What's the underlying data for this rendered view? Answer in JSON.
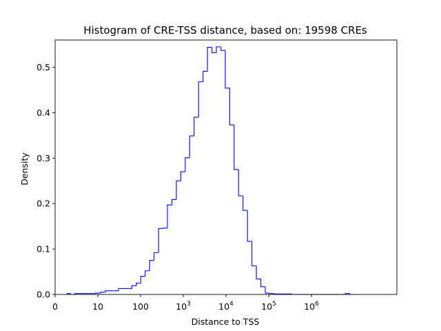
{
  "chart_data": {
    "type": "histogram",
    "title": "Histogram of CRE-TSS distance, based on: 19598 CREs",
    "xlabel": "Distance to TSS",
    "ylabel": "Density",
    "x_scale": "symlog",
    "x_linthresh": 10,
    "xlim": [
      0,
      100000000
    ],
    "ylim": [
      0,
      0.56
    ],
    "x_ticks": [
      {
        "value": 0,
        "base": "0",
        "exp": ""
      },
      {
        "value": 10,
        "base": "10",
        "exp": ""
      },
      {
        "value": 100,
        "base": "100",
        "exp": ""
      },
      {
        "value": 1000,
        "base": "10",
        "exp": "3"
      },
      {
        "value": 10000,
        "base": "10",
        "exp": "4"
      },
      {
        "value": 100000,
        "base": "10",
        "exp": "5"
      },
      {
        "value": 1000000,
        "base": "10",
        "exp": "6"
      }
    ],
    "y_ticks": [
      {
        "value": 0.0,
        "label": "0.0"
      },
      {
        "value": 0.1,
        "label": "0.1"
      },
      {
        "value": 0.2,
        "label": "0.2"
      },
      {
        "value": 0.3,
        "label": "0.3"
      },
      {
        "value": 0.4,
        "label": "0.4"
      },
      {
        "value": 0.5,
        "label": "0.5"
      }
    ],
    "series": [
      {
        "color": "#0000ff",
        "bin_edges": [
          2.8,
          3.6,
          4.6,
          5.8,
          7.4,
          9.4,
          11.7,
          14.9,
          19,
          24,
          30.5,
          38.8,
          49.3,
          62.6,
          79.6,
          101,
          128,
          163,
          207,
          264,
          335,
          426,
          541,
          688,
          874,
          1110,
          1410,
          1790,
          2280,
          2900,
          3680,
          4680,
          5950,
          7560,
          9610,
          12200,
          15500,
          19700,
          25000,
          31800,
          40400,
          51400,
          65300,
          83000,
          105000,
          134000,
          170000,
          216000,
          275000,
          349000,
          444000,
          564000,
          717000,
          911000,
          1160000,
          1470000,
          1870000,
          2380000,
          3020000,
          3840000,
          4880000,
          6200000,
          7880000,
          10000000
        ],
        "densities": [
          0.002,
          0.0,
          0.002,
          0.002,
          0.002,
          0.003,
          0.005,
          0.008,
          0.008,
          0.008,
          0.013,
          0.013,
          0.013,
          0.019,
          0.025,
          0.04,
          0.052,
          0.075,
          0.092,
          0.145,
          0.146,
          0.197,
          0.209,
          0.25,
          0.27,
          0.301,
          0.349,
          0.39,
          0.468,
          0.491,
          0.544,
          0.532,
          0.545,
          0.537,
          0.454,
          0.373,
          0.275,
          0.217,
          0.185,
          0.117,
          0.063,
          0.034,
          0.017,
          0.003,
          0.002,
          0.001,
          0.001,
          0.001,
          0.001,
          0.0,
          0.0,
          0.0,
          0.0,
          0.0,
          0.0,
          0.0,
          0.0,
          0.0,
          0.0,
          0.0,
          0.0,
          0.002,
          0.0
        ]
      }
    ]
  }
}
